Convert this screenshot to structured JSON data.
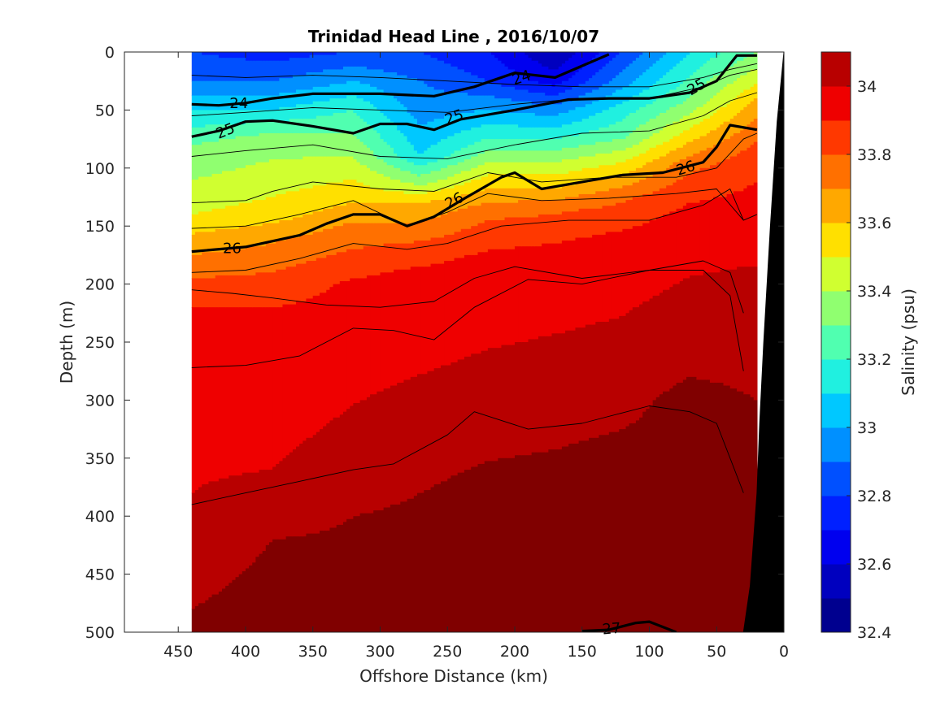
{
  "chart_data": {
    "type": "heatmap",
    "title": "Trinidad Head Line , 2016/10/07",
    "xlabel": "Offshore Distance (km)",
    "ylabel": "Depth (m)",
    "xlim": [
      490,
      0
    ],
    "ylim": [
      500,
      0
    ],
    "x_reversed": true,
    "y_reversed": true,
    "x_ticks": [
      "450",
      "400",
      "350",
      "300",
      "250",
      "200",
      "150",
      "100",
      "50",
      "0"
    ],
    "y_ticks": [
      "0",
      "50",
      "100",
      "150",
      "200",
      "250",
      "300",
      "350",
      "400",
      "450",
      "500"
    ],
    "colorbar": {
      "label": "Salinity (psu)",
      "range": [
        32.4,
        34.1
      ],
      "ticks": [
        "32.4",
        "32.6",
        "32.8",
        "33",
        "33.2",
        "33.4",
        "33.6",
        "33.8",
        "34"
      ],
      "levels": [
        {
          "min": 32.4,
          "max": 32.5,
          "color": "#00008f"
        },
        {
          "min": 32.5,
          "max": 32.6,
          "color": "#0000bf"
        },
        {
          "min": 32.6,
          "max": 32.7,
          "color": "#0000ef"
        },
        {
          "min": 32.7,
          "max": 32.8,
          "color": "#0020ff"
        },
        {
          "min": 32.8,
          "max": 32.9,
          "color": "#0050ff"
        },
        {
          "min": 32.9,
          "max": 33.0,
          "color": "#0090ff"
        },
        {
          "min": 33.0,
          "max": 33.1,
          "color": "#00c8ff"
        },
        {
          "min": 33.1,
          "max": 33.2,
          "color": "#20f0e0"
        },
        {
          "min": 33.2,
          "max": 33.3,
          "color": "#50ffb0"
        },
        {
          "min": 33.3,
          "max": 33.4,
          "color": "#90ff70"
        },
        {
          "min": 33.4,
          "max": 33.5,
          "color": "#d0ff30"
        },
        {
          "min": 33.5,
          "max": 33.6,
          "color": "#ffe000"
        },
        {
          "min": 33.6,
          "max": 33.7,
          "color": "#ffa800"
        },
        {
          "min": 33.7,
          "max": 33.8,
          "color": "#ff7000"
        },
        {
          "min": 33.8,
          "max": 33.9,
          "color": "#ff3800"
        },
        {
          "min": 33.9,
          "max": 34.0,
          "color": "#ef0000"
        },
        {
          "min": 34.0,
          "max": 34.1,
          "color": "#b80000"
        },
        {
          "min": 34.1,
          "max": 34.2,
          "color": "#800000"
        }
      ]
    },
    "data_extent_km": [
      440,
      20
    ],
    "salinity_profiles": [
      {
        "x": 440,
        "depth": [
          0,
          25,
          50,
          80,
          110,
          140,
          165,
          190,
          220,
          380,
          460,
          500
        ],
        "salinity": [
          32.8,
          32.9,
          33.1,
          33.3,
          33.4,
          33.5,
          33.65,
          33.78,
          33.9,
          34.0,
          34.08,
          34.12
        ]
      },
      {
        "x": 380,
        "depth": [
          0,
          25,
          50,
          75,
          110,
          140,
          160,
          190,
          220,
          360,
          420,
          500
        ],
        "salinity": [
          32.75,
          32.9,
          33.1,
          33.35,
          33.45,
          33.55,
          33.68,
          33.8,
          33.9,
          34.0,
          34.1,
          34.15
        ]
      },
      {
        "x": 320,
        "depth": [
          0,
          25,
          50,
          80,
          110,
          130,
          150,
          175,
          200,
          330,
          400,
          500
        ],
        "salinity": [
          32.8,
          33.0,
          33.2,
          33.35,
          33.5,
          33.6,
          33.72,
          33.82,
          33.92,
          34.02,
          34.1,
          34.15
        ]
      },
      {
        "x": 270,
        "depth": [
          0,
          25,
          50,
          90,
          115,
          130,
          150,
          170,
          190,
          300,
          380,
          500
        ],
        "salinity": [
          32.8,
          32.9,
          32.95,
          33.1,
          33.4,
          33.6,
          33.72,
          33.84,
          33.92,
          34.02,
          34.1,
          34.18
        ]
      },
      {
        "x": 220,
        "depth": [
          0,
          25,
          50,
          75,
          100,
          120,
          140,
          160,
          180,
          300,
          370,
          500
        ],
        "salinity": [
          32.7,
          32.8,
          33.0,
          33.2,
          33.45,
          33.62,
          33.78,
          33.86,
          33.93,
          34.04,
          34.12,
          34.2
        ]
      },
      {
        "x": 170,
        "depth": [
          0,
          25,
          50,
          75,
          100,
          120,
          135,
          155,
          175,
          300,
          360,
          500
        ],
        "salinity": [
          32.5,
          32.65,
          32.95,
          33.2,
          33.45,
          33.62,
          33.78,
          33.86,
          33.94,
          34.05,
          34.12,
          34.2
        ]
      },
      {
        "x": 120,
        "depth": [
          0,
          25,
          50,
          75,
          95,
          110,
          125,
          145,
          165,
          290,
          340,
          500
        ],
        "salinity": [
          32.8,
          32.95,
          33.15,
          33.3,
          33.5,
          33.64,
          33.78,
          33.86,
          33.95,
          34.05,
          34.12,
          34.2
        ]
      },
      {
        "x": 70,
        "depth": [
          0,
          20,
          40,
          60,
          80,
          95,
          110,
          130,
          150,
          260,
          300,
          500
        ],
        "salinity": [
          33.1,
          33.2,
          33.3,
          33.45,
          33.62,
          33.75,
          33.83,
          33.9,
          33.96,
          34.06,
          34.14,
          34.2
        ]
      },
      {
        "x": 20,
        "depth": [
          0,
          20,
          40,
          60,
          80,
          100,
          130,
          160,
          200,
          280,
          340,
          500
        ],
        "salinity": [
          33.3,
          33.45,
          33.6,
          33.72,
          33.82,
          33.88,
          33.93,
          33.97,
          34.02,
          34.08,
          34.14,
          34.2
        ]
      }
    ],
    "density_contours": [
      {
        "level": "24",
        "bold": true,
        "x": [
          440,
          420,
          400,
          380,
          350,
          300,
          260,
          230,
          200,
          170,
          150,
          130
        ],
        "depth": [
          45,
          46,
          44,
          40,
          36,
          36,
          38,
          30,
          18,
          22,
          12,
          2
        ]
      },
      {
        "level": "25",
        "bold": true,
        "x": [
          440,
          420,
          400,
          380,
          350,
          320,
          300,
          280,
          260,
          240,
          200,
          160,
          130,
          100,
          70,
          50,
          35,
          20
        ],
        "depth": [
          73,
          68,
          60,
          59,
          64,
          70,
          62,
          62,
          67,
          58,
          50,
          41,
          40,
          40,
          35,
          25,
          3,
          3
        ]
      },
      {
        "level": "26",
        "bold": true,
        "x": [
          440,
          400,
          360,
          340,
          320,
          300,
          280,
          260,
          240,
          210,
          200,
          180,
          150,
          120,
          90,
          60,
          50,
          40,
          20
        ],
        "depth": [
          172,
          168,
          158,
          148,
          140,
          140,
          150,
          142,
          128,
          108,
          104,
          118,
          112,
          106,
          104,
          95,
          82,
          63,
          67
        ]
      },
      {
        "level": "27",
        "bold": true,
        "x": [
          150,
          130,
          110,
          100,
          80
        ],
        "depth": [
          499,
          498,
          492,
          491,
          500
        ]
      },
      {
        "level": "",
        "bold": false,
        "x": [
          440,
          400,
          350,
          300,
          250,
          200,
          150,
          100,
          60,
          40,
          20
        ],
        "depth": [
          20,
          22,
          20,
          22,
          25,
          28,
          30,
          30,
          22,
          15,
          10
        ]
      },
      {
        "level": "",
        "bold": false,
        "x": [
          440,
          400,
          350,
          300,
          250,
          200,
          150,
          100,
          60,
          40,
          20
        ],
        "depth": [
          55,
          52,
          48,
          50,
          52,
          45,
          40,
          40,
          30,
          20,
          15
        ]
      },
      {
        "level": "",
        "bold": false,
        "x": [
          440,
          400,
          350,
          300,
          250,
          200,
          150,
          100,
          60,
          40,
          20
        ],
        "depth": [
          90,
          85,
          80,
          90,
          92,
          80,
          70,
          68,
          55,
          42,
          35
        ]
      },
      {
        "level": "",
        "bold": false,
        "x": [
          440,
          400,
          380,
          350,
          300,
          260,
          220,
          180,
          130,
          80,
          50,
          30,
          20
        ],
        "depth": [
          130,
          128,
          120,
          112,
          118,
          120,
          104,
          112,
          108,
          108,
          100,
          75,
          70
        ]
      },
      {
        "level": "",
        "bold": false,
        "x": [
          440,
          400,
          360,
          320,
          280,
          250,
          220,
          180,
          130,
          80,
          50,
          30,
          20
        ],
        "depth": [
          152,
          150,
          140,
          128,
          150,
          138,
          122,
          128,
          126,
          122,
          118,
          145,
          140
        ]
      },
      {
        "level": "",
        "bold": false,
        "x": [
          440,
          400,
          360,
          320,
          280,
          250,
          210,
          160,
          100,
          60,
          40,
          30
        ],
        "depth": [
          190,
          188,
          178,
          165,
          170,
          165,
          150,
          145,
          145,
          132,
          118,
          145
        ]
      },
      {
        "level": "",
        "bold": false,
        "x": [
          440,
          410,
          380,
          340,
          300,
          260,
          230,
          200,
          150,
          100,
          60,
          40,
          30
        ],
        "depth": [
          205,
          208,
          212,
          218,
          220,
          215,
          195,
          185,
          195,
          188,
          180,
          190,
          225
        ]
      },
      {
        "level": "",
        "bold": false,
        "x": [
          440,
          400,
          360,
          320,
          290,
          260,
          230,
          190,
          150,
          100,
          60,
          40,
          30
        ],
        "depth": [
          272,
          270,
          262,
          238,
          240,
          248,
          220,
          196,
          200,
          188,
          188,
          210,
          275
        ]
      },
      {
        "level": "",
        "bold": false,
        "x": [
          440,
          400,
          360,
          320,
          290,
          250,
          230,
          190,
          150,
          100,
          70,
          50,
          40,
          30
        ],
        "depth": [
          390,
          380,
          370,
          360,
          355,
          330,
          310,
          325,
          320,
          305,
          310,
          320,
          350,
          380
        ]
      }
    ],
    "bathymetry": {
      "x": [
        30,
        25,
        20,
        18,
        15,
        10,
        5,
        0,
        0,
        30
      ],
      "depth": [
        500,
        460,
        380,
        320,
        250,
        150,
        60,
        0,
        500,
        500
      ]
    }
  }
}
